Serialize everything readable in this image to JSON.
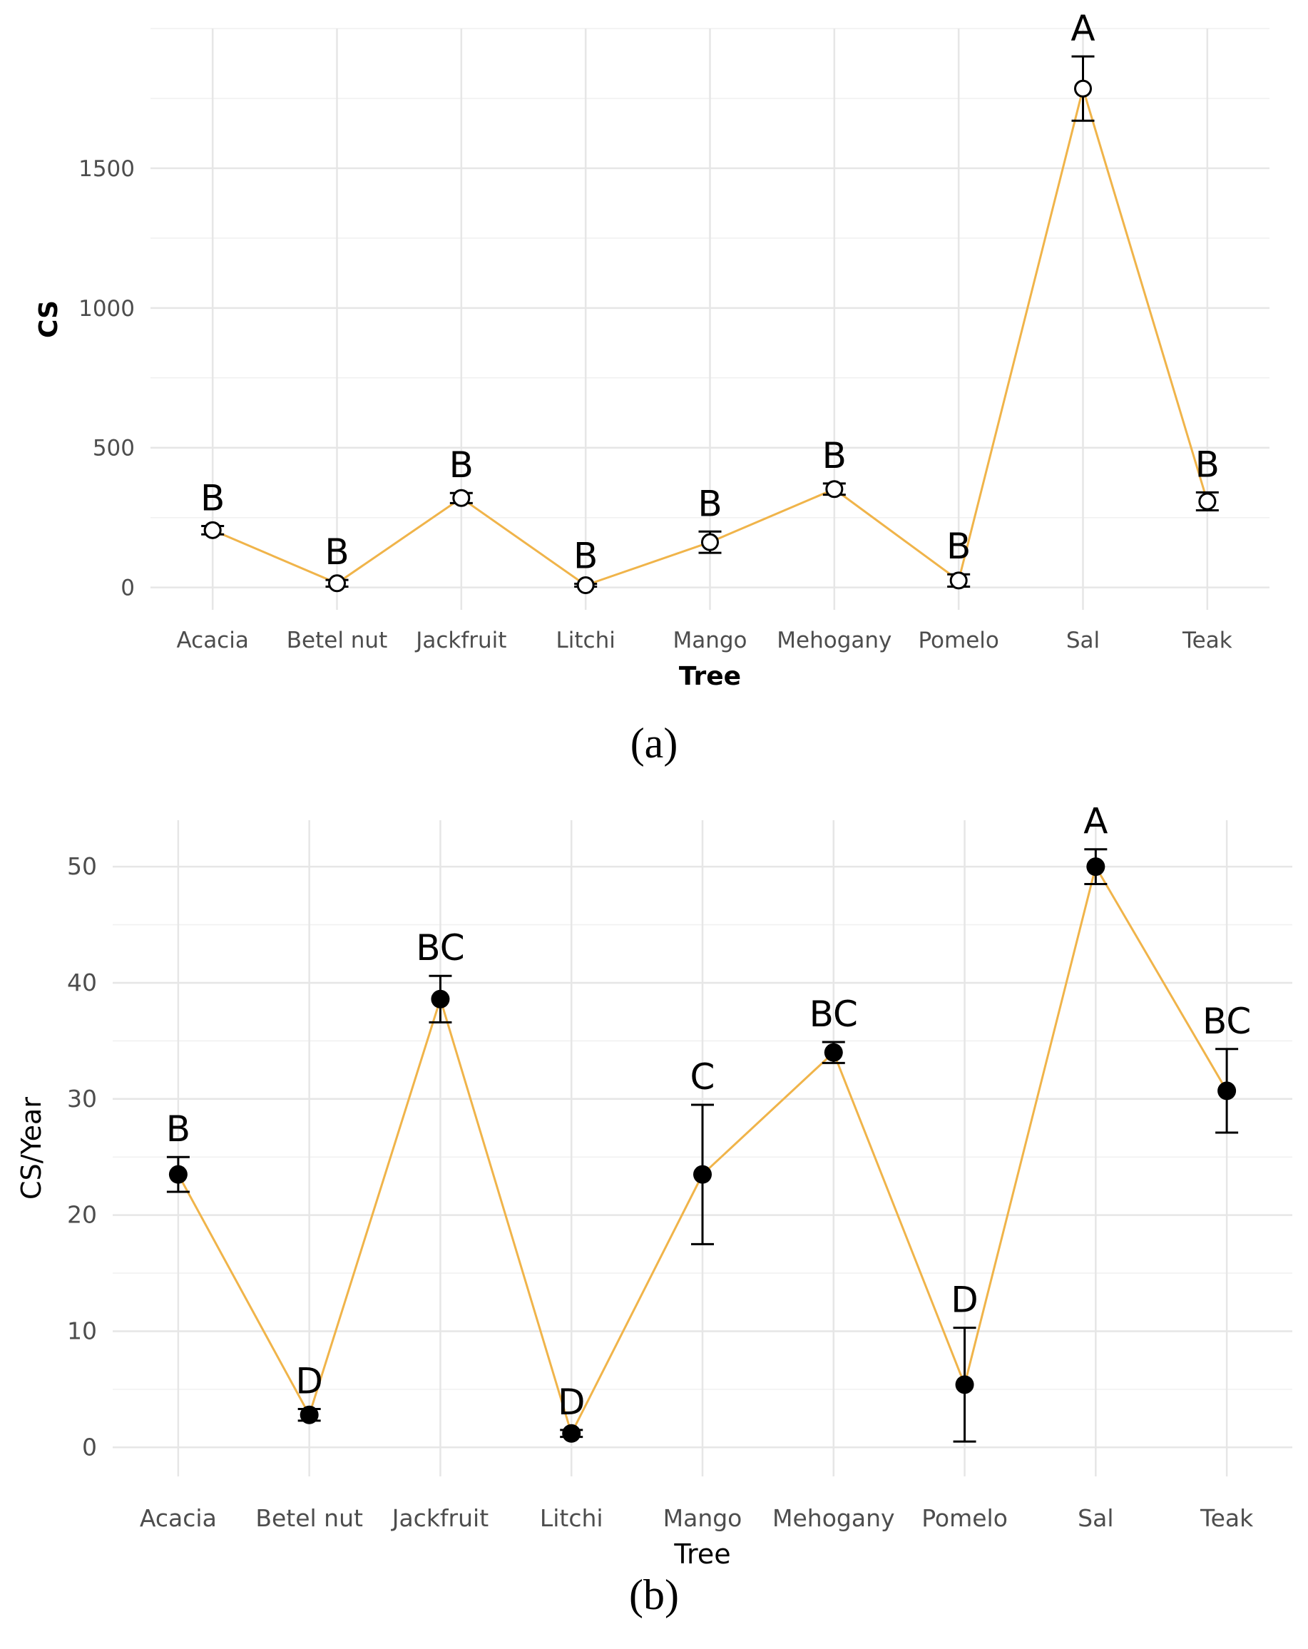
{
  "chart_data": [
    {
      "panel_label": "(a)",
      "type": "line",
      "xlabel": "Tree",
      "ylabel": "CS",
      "categories": [
        "Acacia",
        "Betel nut",
        "Jackfruit",
        "Litchi",
        "Mango",
        "Mehogany",
        "Pomelo",
        "Sal",
        "Teak"
      ],
      "values": [
        205,
        15,
        320,
        8,
        162,
        352,
        25,
        1785,
        308
      ],
      "error": [
        15,
        12,
        18,
        5,
        38,
        20,
        22,
        115,
        32
      ],
      "letters": [
        "B",
        "B",
        "B",
        "B",
        "B",
        "B",
        "B",
        "A",
        "B"
      ],
      "yticks": [
        0,
        500,
        1000,
        1500
      ],
      "ylim": [
        -80,
        2000
      ],
      "grid": true,
      "marker": "open-circle",
      "line_color": "#f0b44a"
    },
    {
      "panel_label": "(b)",
      "type": "line",
      "xlabel": "Tree",
      "ylabel": "CS/Year",
      "categories": [
        "Acacia",
        "Betel nut",
        "Jackfruit",
        "Litchi",
        "Mango",
        "Mehogany",
        "Pomelo",
        "Sal",
        "Teak"
      ],
      "values": [
        23.5,
        2.8,
        38.6,
        1.2,
        23.5,
        34.0,
        5.4,
        50.0,
        30.7
      ],
      "error": [
        1.5,
        0.5,
        2.0,
        0.3,
        6.0,
        0.9,
        4.9,
        1.5,
        3.6
      ],
      "letters": [
        "B",
        "D",
        "BC",
        "D",
        "C",
        "BC",
        "D",
        "A",
        "BC"
      ],
      "yticks": [
        0,
        10,
        20,
        30,
        40,
        50
      ],
      "ylim": [
        -2.5,
        54
      ],
      "grid": true,
      "marker": "filled-circle",
      "line_color": "#f0b44a"
    }
  ]
}
